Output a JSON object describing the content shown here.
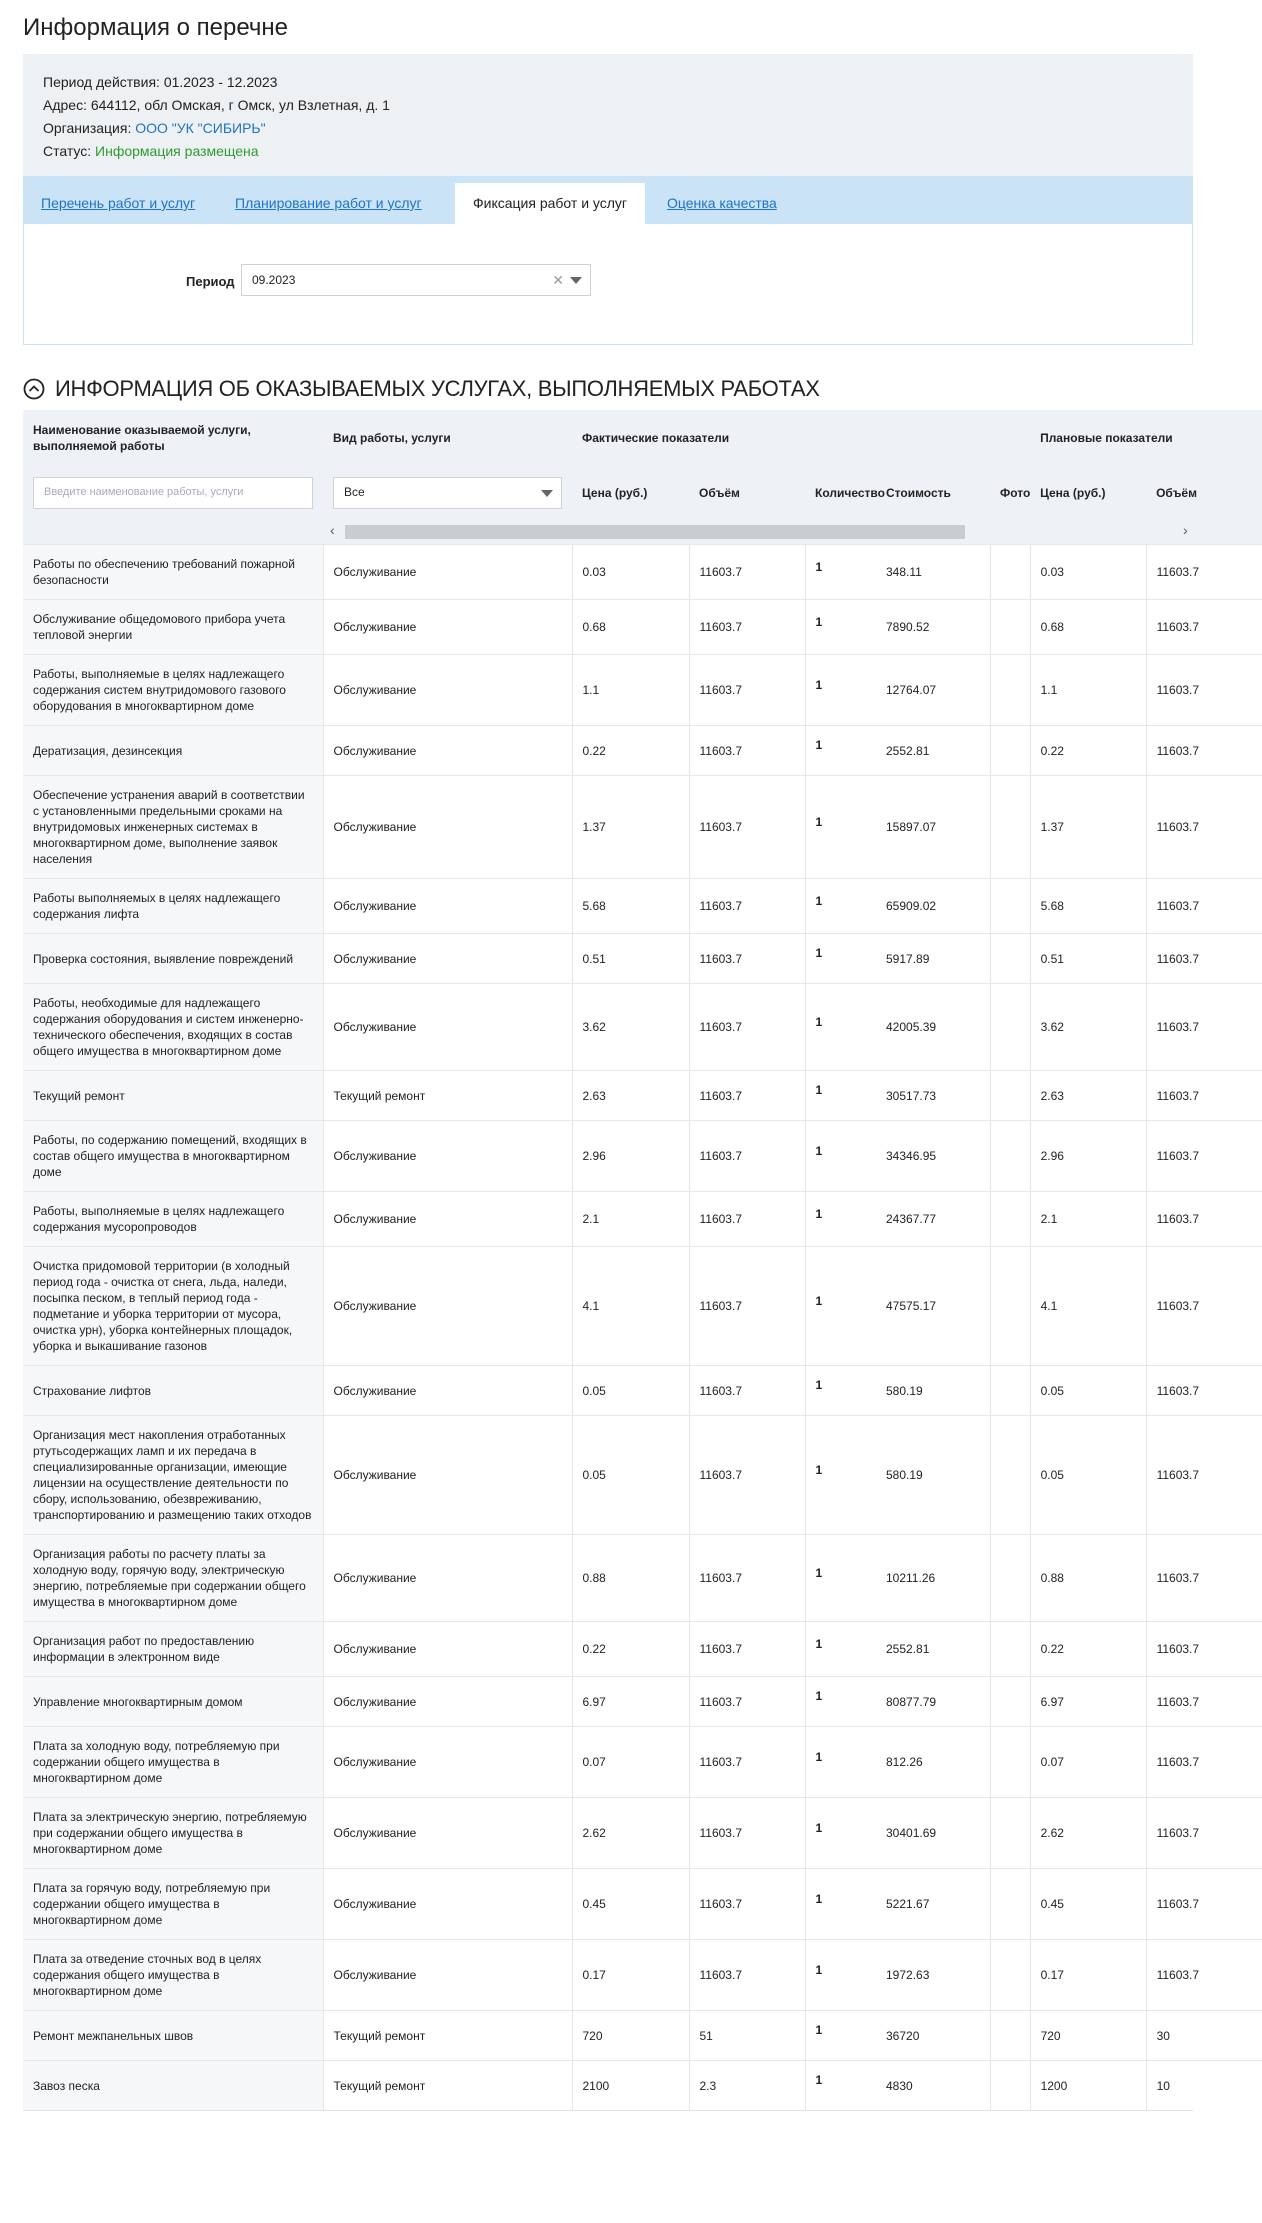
{
  "header": {
    "title": "Информация о перечне"
  },
  "info": [
    {
      "label": "Период действия:",
      "value": "01.2023 - 12.2023"
    },
    {
      "label": "Адрес:",
      "value": "644112, обл Омская, г Омск, ул Взлетная, д. 1"
    },
    {
      "label": "Организация:",
      "value": "ООО \"УК \"СИБИРЬ\""
    },
    {
      "label": "Статус:",
      "value": "Информация размещена"
    }
  ],
  "tabs": [
    "Перечень работ и услуг",
    "Планирование работ и услуг",
    "Фиксация работ и услуг",
    "Оценка качества"
  ],
  "active_tab": 2,
  "filter": {
    "label": "Период",
    "value": "09.2023"
  },
  "section": {
    "title": "ИНФОРМАЦИЯ ОБ ОКАЗЫВАЕМЫХ УСЛУГАХ, ВЫПОЛНЯЕМЫХ РАБОТАХ"
  },
  "table": {
    "columns": {
      "name": "Наименование оказываемой услуги, выполняемой работы",
      "type": "Вид работы, услуги",
      "actual": "Фактические показатели",
      "planned": "Плановые показатели"
    },
    "search_placeholder": "Введите наименование работы, услуги",
    "select_value": "Все",
    "subcolumns": [
      "Цена (руб.)",
      "Объём",
      "Количество",
      "Стоимость",
      "Фото",
      "Цена (руб.)",
      "Объём"
    ],
    "rows": [
      [
        "Работы по обеспечению требований пожарной безопасности",
        "Обслуживание",
        "0.03",
        "11603.7",
        "1",
        "348.11",
        "0.03",
        "11603.7"
      ],
      [
        "Обслуживание общедомового прибора учета тепловой энергии",
        "Обслуживание",
        "0.68",
        "11603.7",
        "1",
        "7890.52",
        "0.68",
        "11603.7"
      ],
      [
        "Работы, выполняемые в целях надлежащего содержания систем внутридомового газового оборудования в многоквартирном доме",
        "Обслуживание",
        "1.1",
        "11603.7",
        "1",
        "12764.07",
        "1.1",
        "11603.7"
      ],
      [
        "Дератизация, дезинсекция",
        "Обслуживание",
        "0.22",
        "11603.7",
        "1",
        "2552.81",
        "0.22",
        "11603.7"
      ],
      [
        "Обеспечение устранения аварий в соответствии с установленными предельными сроками на внутридомовых инженерных системах в многоквартирном доме, выполнение заявок населения",
        "Обслуживание",
        "1.37",
        "11603.7",
        "1",
        "15897.07",
        "1.37",
        "11603.7"
      ],
      [
        "Работы выполняемых в целях надлежащего содержания лифта",
        "Обслуживание",
        "5.68",
        "11603.7",
        "1",
        "65909.02",
        "5.68",
        "11603.7"
      ],
      [
        "Проверка состояния, выявление повреждений",
        "Обслуживание",
        "0.51",
        "11603.7",
        "1",
        "5917.89",
        "0.51",
        "11603.7"
      ],
      [
        "Работы, необходимые для надлежащего содержания оборудования и систем инженерно-технического обеспечения, входящих в состав общего имущества в многоквартирном доме",
        "Обслуживание",
        "3.62",
        "11603.7",
        "1",
        "42005.39",
        "3.62",
        "11603.7"
      ],
      [
        "Текущий ремонт",
        "Текущий ремонт",
        "2.63",
        "11603.7",
        "1",
        "30517.73",
        "2.63",
        "11603.7"
      ],
      [
        "Работы, по содержанию помещений, входящих в состав общего имущества в многоквартирном доме",
        "Обслуживание",
        "2.96",
        "11603.7",
        "1",
        "34346.95",
        "2.96",
        "11603.7"
      ],
      [
        "Работы, выполняемые в целях надлежащего содержания мусоропроводов",
        "Обслуживание",
        "2.1",
        "11603.7",
        "1",
        "24367.77",
        "2.1",
        "11603.7"
      ],
      [
        "Очистка придомовой территории (в холодный период года - очистка от снега, льда, наледи, посыпка песком, в теплый период года - подметание и уборка территории от мусора, очистка урн), уборка контейнерных площадок, уборка и выкашивание газонов",
        "Обслуживание",
        "4.1",
        "11603.7",
        "1",
        "47575.17",
        "4.1",
        "11603.7"
      ],
      [
        "Страхование лифтов",
        "Обслуживание",
        "0.05",
        "11603.7",
        "1",
        "580.19",
        "0.05",
        "11603.7"
      ],
      [
        "Организация мест накопления отработанных ртутьсодержащих ламп и их передача в специализированные организации, имеющие лицензии на осуществление деятельности по сбору, использованию, обезвреживанию, транспортированию и размещению таких отходов",
        "Обслуживание",
        "0.05",
        "11603.7",
        "1",
        "580.19",
        "0.05",
        "11603.7"
      ],
      [
        "Организация работы по расчету платы за холодную воду, горячую воду, электрическую энергию, потребляемые при содержании общего имущества в многоквартирном доме",
        "Обслуживание",
        "0.88",
        "11603.7",
        "1",
        "10211.26",
        "0.88",
        "11603.7"
      ],
      [
        "Организация работ по предоставлению информации в электронном виде",
        "Обслуживание",
        "0.22",
        "11603.7",
        "1",
        "2552.81",
        "0.22",
        "11603.7"
      ],
      [
        "Управление многоквартирным домом",
        "Обслуживание",
        "6.97",
        "11603.7",
        "1",
        "80877.79",
        "6.97",
        "11603.7"
      ],
      [
        "Плата за холодную воду, потребляемую при содержании общего имущества в многоквартирном доме",
        "Обслуживание",
        "0.07",
        "11603.7",
        "1",
        "812.26",
        "0.07",
        "11603.7"
      ],
      [
        "Плата за электрическую энергию, потребляемую при содержании общего имущества в многоквартирном доме",
        "Обслуживание",
        "2.62",
        "11603.7",
        "1",
        "30401.69",
        "2.62",
        "11603.7"
      ],
      [
        "Плата за горячую воду, потребляемую при содержании общего имущества в многоквартирном доме",
        "Обслуживание",
        "0.45",
        "11603.7",
        "1",
        "5221.67",
        "0.45",
        "11603.7"
      ],
      [
        "Плата за отведение сточных вод в целях содержания общего имущества в многоквартирном доме",
        "Обслуживание",
        "0.17",
        "11603.7",
        "1",
        "1972.63",
        "0.17",
        "11603.7"
      ],
      [
        "Ремонт межпанельных швов",
        "Текущий ремонт",
        "720",
        "51",
        "1",
        "36720",
        "720",
        "30"
      ],
      [
        "Завоз песка",
        "Текущий ремонт",
        "2100",
        "2.3",
        "1",
        "4830",
        "1200",
        "10"
      ]
    ]
  }
}
